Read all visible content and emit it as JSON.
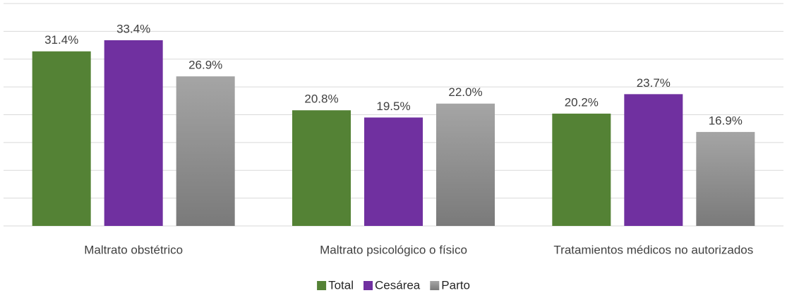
{
  "chart_data": {
    "type": "bar",
    "categories": [
      "Maltrato obstétrico",
      "Maltrato psicológico o físico",
      "Tratamientos médicos no autorizados"
    ],
    "series": [
      {
        "name": "Total",
        "color": "#548235",
        "values": [
          31.4,
          20.8,
          20.2
        ],
        "value_labels": [
          "31.4%",
          "20.8%",
          "20.2%"
        ]
      },
      {
        "name": "Cesárea",
        "color": "#7030a0",
        "values": [
          33.4,
          19.5,
          23.7
        ],
        "value_labels": [
          "33.4%",
          "19.5%",
          "23.7%"
        ]
      },
      {
        "name": "Parto",
        "color": "#a5a5a5",
        "values": [
          26.9,
          22.0,
          16.9
        ],
        "value_labels": [
          "26.9%",
          "22.0%",
          "16.9%"
        ]
      }
    ],
    "ylim": [
      0,
      40
    ],
    "yticks": [
      0,
      5,
      10,
      15,
      20,
      25,
      30,
      35,
      40
    ],
    "grid": true,
    "legend": "bottom"
  }
}
